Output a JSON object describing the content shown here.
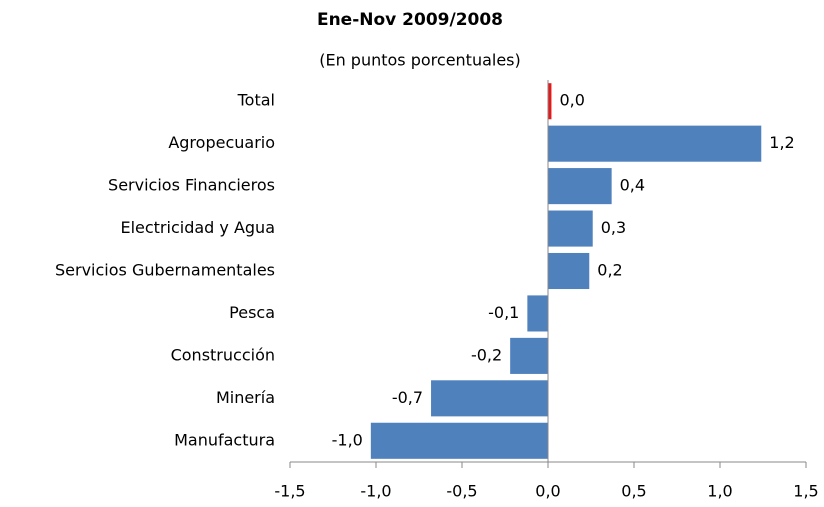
{
  "chart_data": {
    "type": "bar",
    "orientation": "horizontal",
    "title": "Ene-Nov 2009/2008",
    "subtitle": "(En puntos porcentuales)",
    "categories": [
      "Total",
      "Agropecuario",
      "Servicios Financieros",
      "Electricidad y Agua",
      "Servicios Gubernamentales",
      "Pesca",
      "Construcción",
      "Minería",
      "Manufactura"
    ],
    "values": [
      0.02,
      1.24,
      0.37,
      0.26,
      0.24,
      -0.12,
      -0.22,
      -0.68,
      -1.03
    ],
    "value_labels": [
      "0,0",
      "1,2",
      "0,4",
      "0,3",
      "0,2",
      "-0,1",
      "-0,2",
      "-0,7",
      "-1,0"
    ],
    "colors": [
      "#e31a1c",
      "#4f81bd",
      "#4f81bd",
      "#4f81bd",
      "#4f81bd",
      "#4f81bd",
      "#4f81bd",
      "#4f81bd",
      "#4f81bd"
    ],
    "xlim": [
      -1.5,
      1.5
    ],
    "xticks": [
      {
        "value": -1.5,
        "label": "-1,5"
      },
      {
        "value": -1.0,
        "label": "-1,0"
      },
      {
        "value": -0.5,
        "label": "-0,5"
      },
      {
        "value": 0,
        "label": "0,0"
      },
      {
        "value": 0.5,
        "label": "0,5"
      },
      {
        "value": 1.0,
        "label": "1,0"
      },
      {
        "value": 1.5,
        "label": "1,5"
      }
    ],
    "grid": false
  }
}
